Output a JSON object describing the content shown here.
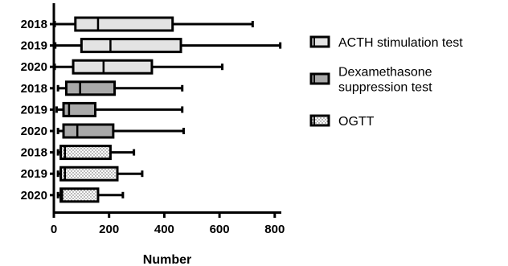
{
  "chart_data": {
    "type": "boxplot",
    "orientation": "horizontal",
    "title": "",
    "xlabel": "Number",
    "ylabel": "",
    "xlim": [
      0,
      850
    ],
    "xticks": [
      0,
      200,
      400,
      600,
      800
    ],
    "grid": false,
    "legend_position": "right",
    "categories": [
      "2018",
      "2019",
      "2020",
      "2018",
      "2019",
      "2020",
      "2018",
      "2019",
      "2020"
    ],
    "series": [
      {
        "name": "ACTH stimulation test",
        "fill": "#e3e3e3",
        "pattern": "solid",
        "boxes": [
          {
            "label": "2018",
            "min": 3,
            "q1": 78,
            "median": 160,
            "q3": 430,
            "max": 720
          },
          {
            "label": "2019",
            "min": 5,
            "q1": 100,
            "median": 205,
            "q3": 460,
            "max": 820
          },
          {
            "label": "2020",
            "min": 3,
            "q1": 70,
            "median": 180,
            "q3": 355,
            "max": 610
          }
        ]
      },
      {
        "name": "Dexamethasone suppression test",
        "label_lines": [
          "Dexamethasone",
          "suppression test"
        ],
        "fill": "#a9a9a9",
        "pattern": "solid",
        "boxes": [
          {
            "label": "2018",
            "min": 15,
            "q1": 45,
            "median": 95,
            "q3": 220,
            "max": 465
          },
          {
            "label": "2019",
            "min": 10,
            "q1": 35,
            "median": 55,
            "q3": 150,
            "max": 465
          },
          {
            "label": "2020",
            "min": 15,
            "q1": 35,
            "median": 85,
            "q3": 215,
            "max": 470
          }
        ]
      },
      {
        "name": "OGTT",
        "fill": "#ffffff",
        "pattern": "dotted",
        "boxes": [
          {
            "label": "2018",
            "min": 15,
            "q1": 25,
            "median": 40,
            "q3": 205,
            "max": 290
          },
          {
            "label": "2019",
            "min": 15,
            "q1": 25,
            "median": 40,
            "q3": 230,
            "max": 320
          },
          {
            "label": "2020",
            "min": 15,
            "q1": 25,
            "median": 30,
            "q3": 160,
            "max": 250
          }
        ]
      }
    ]
  }
}
